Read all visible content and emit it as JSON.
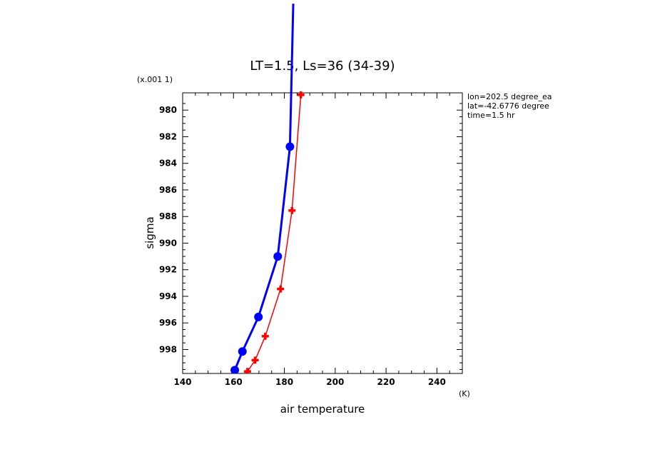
{
  "chart_data": {
    "type": "line",
    "title": "LT=1.5, Ls=36 (34-39)",
    "xlabel": "air temperature",
    "xunit": "(K)",
    "ylabel": "sigma",
    "yscale_note": "(x.001 1)",
    "xlim": [
      140,
      250
    ],
    "ylim": [
      999.8,
      978.7
    ],
    "xticks": [
      140,
      160,
      180,
      200,
      220,
      240
    ],
    "yticks": [
      980,
      982,
      984,
      986,
      988,
      990,
      992,
      994,
      996,
      998
    ],
    "info": [
      "lon=202.5 degree_ea",
      "lat=-42.6776 degree",
      "time=1.5 hr"
    ],
    "series": [
      {
        "color": "#0000ff",
        "marker": "circle",
        "x": [
          160.5,
          163.5,
          169.8,
          177.4,
          182.2,
          183.5
        ],
        "y": [
          999.55,
          998.15,
          995.55,
          991.0,
          982.75,
          972.0
        ]
      },
      {
        "color": "#ff0000",
        "marker": "plus",
        "x": [
          165.5,
          168.5,
          172.5,
          178.5,
          183.0,
          186.5
        ],
        "y": [
          999.65,
          998.8,
          997.0,
          993.45,
          987.55,
          978.85
        ]
      }
    ]
  }
}
